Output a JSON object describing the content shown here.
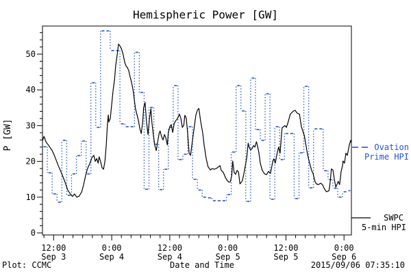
{
  "title": "Hemispheric Power [GW]",
  "footer": {
    "left": "Plot: CCMC",
    "center": "Date and Time",
    "right": "2015/09/06 07:35:10"
  },
  "legend": {
    "ovation_line1": "Ovation",
    "ovation_line2": "Prime HPI",
    "swpc_line1": "SWPC",
    "swpc_line2": "5-min HPI"
  },
  "colors": {
    "ovation": "#2553cc",
    "swpc": "#000000",
    "frame": "#000000",
    "background": "#ffffff"
  },
  "chart_data": {
    "type": "line",
    "title": "Hemispheric Power [GW]",
    "xlabel": "Date and Time",
    "ylabel": "P [GW]",
    "ylim": [
      0,
      58
    ],
    "y_major_ticks": [
      0,
      10,
      20,
      30,
      40,
      50
    ],
    "y_minor_step": 2,
    "x_hours_range": [
      9.7,
      73.53
    ],
    "x_hours_note": "hours since 2015-09-03 00:00 UT",
    "x_major_ticks": [
      {
        "t": 12,
        "time": "12:00",
        "date": "Sep 3"
      },
      {
        "t": 24,
        "time": "0:00",
        "date": "Sep 4"
      },
      {
        "t": 36,
        "time": "12:00",
        "date": "Sep 4"
      },
      {
        "t": 48,
        "time": "0:00",
        "date": "Sep 5"
      },
      {
        "t": 60,
        "time": "12:00",
        "date": "Sep 5"
      },
      {
        "t": 72,
        "time": "0:00",
        "date": "Sep 6"
      }
    ],
    "x_minor_step_hours": 2,
    "grid": false,
    "legend_position": "right-outside",
    "series": [
      {
        "name": "SWPC 5-min HPI",
        "style": "solid",
        "color": "#000000",
        "points": [
          [
            9.7,
            25.8
          ],
          [
            10.0,
            27.0
          ],
          [
            10.4,
            25.5
          ],
          [
            11.1,
            24.2
          ],
          [
            11.7,
            23.0
          ],
          [
            12.2,
            21.5
          ],
          [
            12.9,
            19.0
          ],
          [
            13.7,
            16.5
          ],
          [
            14.4,
            14.0
          ],
          [
            14.9,
            12.0
          ],
          [
            15.5,
            10.8
          ],
          [
            15.9,
            10.2
          ],
          [
            16.3,
            10.9
          ],
          [
            16.8,
            10.0
          ],
          [
            17.3,
            10.3
          ],
          [
            17.8,
            11.5
          ],
          [
            18.2,
            13.5
          ],
          [
            18.6,
            16.0
          ],
          [
            19.0,
            18.0
          ],
          [
            19.5,
            19.5
          ],
          [
            19.9,
            21.0
          ],
          [
            20.3,
            21.7
          ],
          [
            20.6,
            20.0
          ],
          [
            20.9,
            20.8
          ],
          [
            21.2,
            19.5
          ],
          [
            21.4,
            21.3
          ],
          [
            21.7,
            20.0
          ],
          [
            22.0,
            18.3
          ],
          [
            22.3,
            17.8
          ],
          [
            22.6,
            20.0
          ],
          [
            22.9,
            25.0
          ],
          [
            23.1,
            30.0
          ],
          [
            23.3,
            33.0
          ],
          [
            23.4,
            31.0
          ],
          [
            23.7,
            32.0
          ],
          [
            24.0,
            36.0
          ],
          [
            24.3,
            40.0
          ],
          [
            24.6,
            43.0
          ],
          [
            24.8,
            46.5
          ],
          [
            25.1,
            49.5
          ],
          [
            25.4,
            52.8
          ],
          [
            25.7,
            52.3
          ],
          [
            26.0,
            51.5
          ],
          [
            26.3,
            50.3
          ],
          [
            26.7,
            47.6
          ],
          [
            27.0,
            46.6
          ],
          [
            27.2,
            46.3
          ],
          [
            27.5,
            45.5
          ],
          [
            27.8,
            43.7
          ],
          [
            28.1,
            42.1
          ],
          [
            28.4,
            40.0
          ],
          [
            28.7,
            37.0
          ],
          [
            28.9,
            34.8
          ],
          [
            29.2,
            33.2
          ],
          [
            29.5,
            31.6
          ],
          [
            29.8,
            29.2
          ],
          [
            30.1,
            27.8
          ],
          [
            30.4,
            31.0
          ],
          [
            30.6,
            35.0
          ],
          [
            30.9,
            36.5
          ],
          [
            31.2,
            31.0
          ],
          [
            31.5,
            27.5
          ],
          [
            31.8,
            32.0
          ],
          [
            32.1,
            34.7
          ],
          [
            32.3,
            31.0
          ],
          [
            32.6,
            27.5
          ],
          [
            32.9,
            24.5
          ],
          [
            33.2,
            23.0
          ],
          [
            33.5,
            25.5
          ],
          [
            33.8,
            27.8
          ],
          [
            34.0,
            28.5
          ],
          [
            34.3,
            27.0
          ],
          [
            34.6,
            26.0
          ],
          [
            34.9,
            27.5
          ],
          [
            35.2,
            26.5
          ],
          [
            35.5,
            24.6
          ],
          [
            35.7,
            28.0
          ],
          [
            36.0,
            29.7
          ],
          [
            36.3,
            30.3
          ],
          [
            36.6,
            28.1
          ],
          [
            36.9,
            30.5
          ],
          [
            37.2,
            31.3
          ],
          [
            37.6,
            32.0
          ],
          [
            38.0,
            33.2
          ],
          [
            38.3,
            32.0
          ],
          [
            38.6,
            29.5
          ],
          [
            38.9,
            30.1
          ],
          [
            39.1,
            32.9
          ],
          [
            39.4,
            32.1
          ],
          [
            39.7,
            27.8
          ],
          [
            40.0,
            22.3
          ],
          [
            40.3,
            21.7
          ],
          [
            40.5,
            24.0
          ],
          [
            41.0,
            29.0
          ],
          [
            41.4,
            33.0
          ],
          [
            41.7,
            34.3
          ],
          [
            42.0,
            34.8
          ],
          [
            42.4,
            31.0
          ],
          [
            42.8,
            28.0
          ],
          [
            43.1,
            24.6
          ],
          [
            43.5,
            21.0
          ],
          [
            43.9,
            18.5
          ],
          [
            44.4,
            17.6
          ],
          [
            44.8,
            18.0
          ],
          [
            45.2,
            17.8
          ],
          [
            45.6,
            18.0
          ],
          [
            46.1,
            18.5
          ],
          [
            46.4,
            18.8
          ],
          [
            46.6,
            17.6
          ],
          [
            47.1,
            16.8
          ],
          [
            47.5,
            15.5
          ],
          [
            47.9,
            14.6
          ],
          [
            48.2,
            14.2
          ],
          [
            48.5,
            14.3
          ],
          [
            48.8,
            16.0
          ],
          [
            49.0,
            20.1
          ],
          [
            49.3,
            16.9
          ],
          [
            49.6,
            16.4
          ],
          [
            49.9,
            17.5
          ],
          [
            50.2,
            17.0
          ],
          [
            50.5,
            13.7
          ],
          [
            50.7,
            14.0
          ],
          [
            51.0,
            14.6
          ],
          [
            51.3,
            16.5
          ],
          [
            51.6,
            18.8
          ],
          [
            51.9,
            21.0
          ],
          [
            52.2,
            25.1
          ],
          [
            52.4,
            24.0
          ],
          [
            52.7,
            23.2
          ],
          [
            53.0,
            23.6
          ],
          [
            53.3,
            24.4
          ],
          [
            53.6,
            24.0
          ],
          [
            53.9,
            25.5
          ],
          [
            54.1,
            24.5
          ],
          [
            54.4,
            22.5
          ],
          [
            54.7,
            19.5
          ],
          [
            55.1,
            17.5
          ],
          [
            55.6,
            16.5
          ],
          [
            56.0,
            16.3
          ],
          [
            56.4,
            17.2
          ],
          [
            56.8,
            16.6
          ],
          [
            57.3,
            20.1
          ],
          [
            57.5,
            20.7
          ],
          [
            57.8,
            19.5
          ],
          [
            58.2,
            22.4
          ],
          [
            58.5,
            24.0
          ],
          [
            58.8,
            22.3
          ],
          [
            59.2,
            29.4
          ],
          [
            59.5,
            29.7
          ],
          [
            59.8,
            30.0
          ],
          [
            60.1,
            29.5
          ],
          [
            60.4,
            30.7
          ],
          [
            60.9,
            33.2
          ],
          [
            61.4,
            33.9
          ],
          [
            61.6,
            34.1
          ],
          [
            61.9,
            34.3
          ],
          [
            62.3,
            33.5
          ],
          [
            62.8,
            33.2
          ],
          [
            63.2,
            29.7
          ],
          [
            63.8,
            27.2
          ],
          [
            64.2,
            24.0
          ],
          [
            64.5,
            21.7
          ],
          [
            64.9,
            19.5
          ],
          [
            65.3,
            17.5
          ],
          [
            65.6,
            16.6
          ],
          [
            66.0,
            14.4
          ],
          [
            66.3,
            13.7
          ],
          [
            66.7,
            13.5
          ],
          [
            67.2,
            13.9
          ],
          [
            67.6,
            13.4
          ],
          [
            67.9,
            12.5
          ],
          [
            68.2,
            11.8
          ],
          [
            68.4,
            11.5
          ],
          [
            68.9,
            11.8
          ],
          [
            69.1,
            13.7
          ],
          [
            69.4,
            17.9
          ],
          [
            69.7,
            17.6
          ],
          [
            70.0,
            15.0
          ],
          [
            70.3,
            12.8
          ],
          [
            70.6,
            13.7
          ],
          [
            70.8,
            14.4
          ],
          [
            71.1,
            13.5
          ],
          [
            71.4,
            17.2
          ],
          [
            71.7,
            18.8
          ],
          [
            71.8,
            20.1
          ],
          [
            72.1,
            19.5
          ],
          [
            72.4,
            22.3
          ],
          [
            72.7,
            21.7
          ],
          [
            73.0,
            24.0
          ],
          [
            73.1,
            24.7
          ],
          [
            73.4,
            25.9
          ],
          [
            73.5,
            25.3
          ]
        ]
      },
      {
        "name": "Ovation Prime HPI",
        "style": "hourly-steps-dashed-with-dotted-connectors",
        "color": "#2553cc",
        "step_hours": 1,
        "start_t": 9.7,
        "values": [
          24.1,
          16.8,
          10.9,
          8.6,
          25.9,
          10.5,
          16.5,
          21.6,
          25.7,
          16.5,
          42.0,
          29.5,
          56.5,
          56.5,
          51.0,
          51.0,
          30.5,
          29.7,
          29.7,
          50.5,
          39.3,
          12.2,
          35.1,
          24.8,
          12.1,
          17.8,
          29.5,
          41.2,
          20.5,
          22.0,
          29.7,
          15.0,
          12.0,
          10.0,
          9.8,
          9.0,
          9.0,
          9.0,
          10.7,
          22.6,
          41.2,
          34.1,
          8.8,
          43.3,
          28.9,
          25.9,
          38.9,
          9.4,
          29.7,
          20.5,
          27.8,
          27.8,
          9.6,
          22.4,
          41.0,
          12.6,
          29.1,
          29.1,
          17.4,
          14.9,
          12.5,
          10.0,
          11.5,
          11.8
        ]
      }
    ]
  }
}
